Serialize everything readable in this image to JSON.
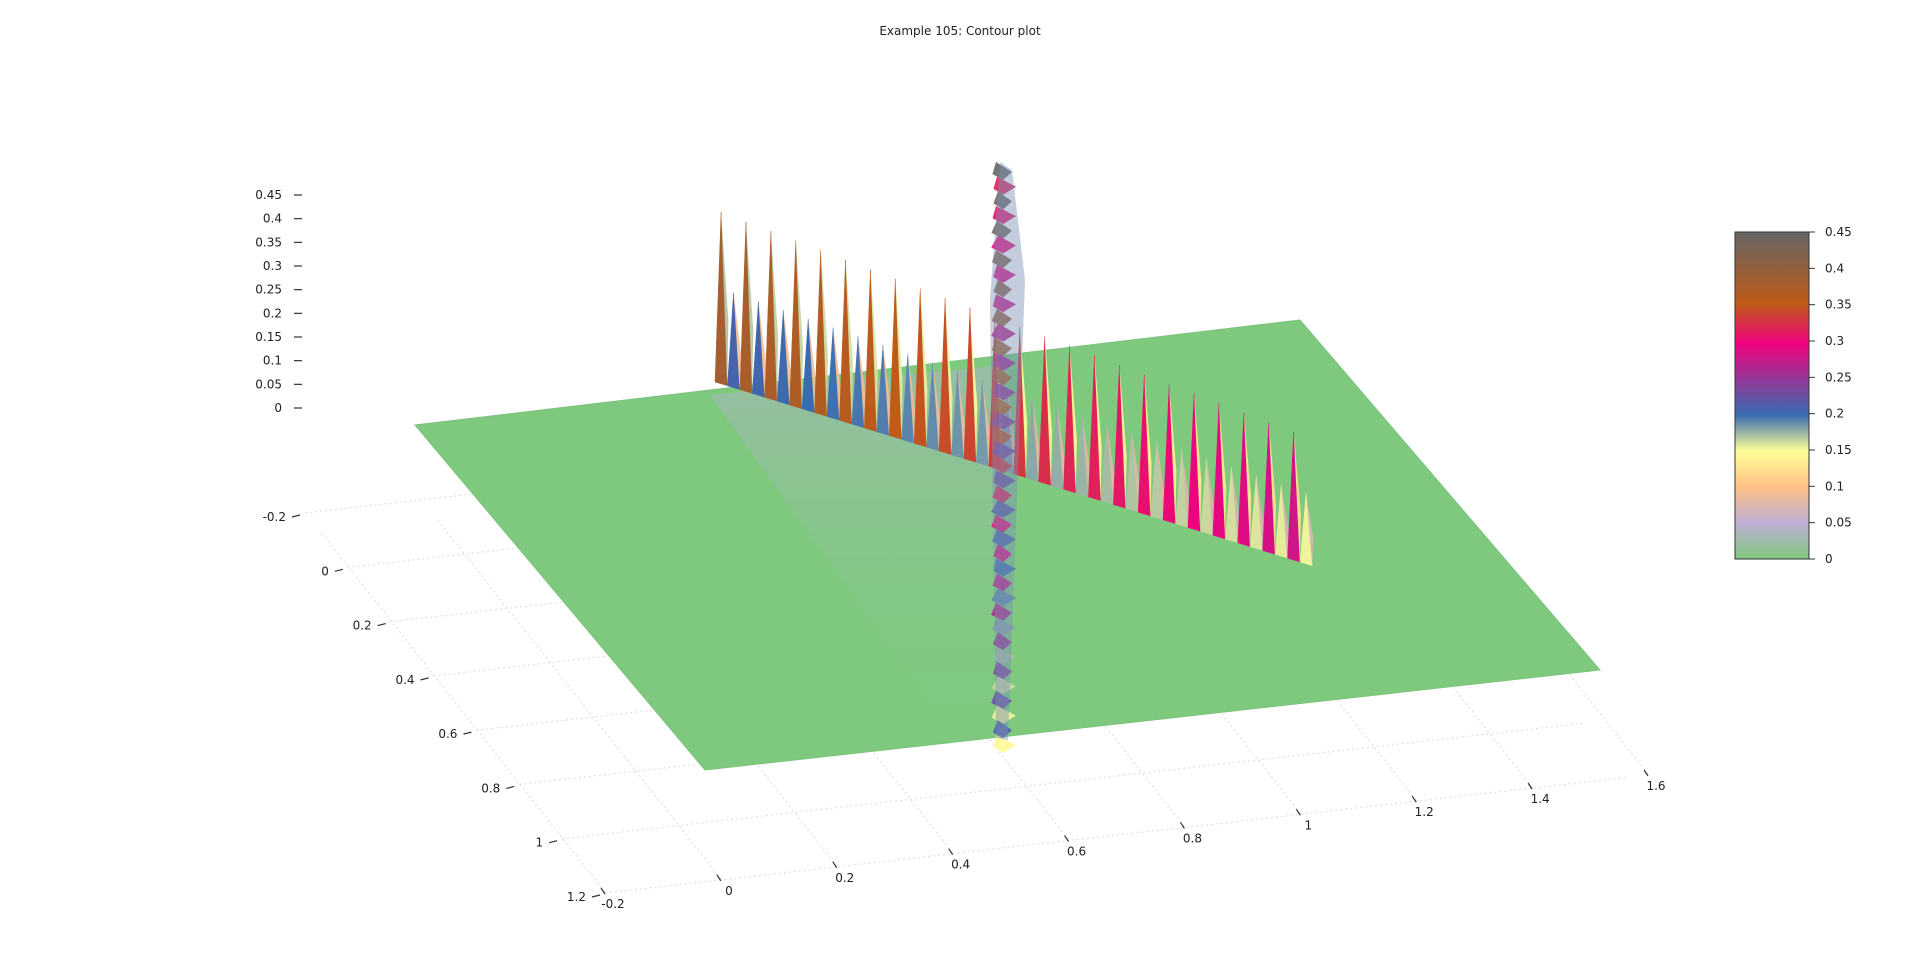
{
  "chart_data": {
    "type": "surface",
    "title": "Example 105: Contour plot",
    "x_ticks": [
      "-0.2",
      "0",
      "0.2",
      "0.4",
      "0.6",
      "0.8",
      "1",
      "1.2",
      "1.4",
      "1.6"
    ],
    "y_ticks": [
      "-0.2",
      "0",
      "0.2",
      "0.4",
      "0.6",
      "0.8",
      "1",
      "1.2"
    ],
    "z_ticks": [
      "0.45",
      "0.4",
      "0.35",
      "0.3",
      "0.25",
      "0.2",
      "0.15",
      "0.1",
      "0.05",
      "0"
    ],
    "colorbar_ticks": [
      "0.45",
      "0.4",
      "0.35",
      "0.3",
      "0.25",
      "0.2",
      "0.15",
      "0.1",
      "0.05",
      "0"
    ],
    "xlim": [
      -0.2,
      1.6
    ],
    "ylim": [
      -0.2,
      1.2
    ],
    "zlim": [
      0,
      0.45
    ],
    "colorscale": [
      {
        "value": 0.0,
        "color": "#7fc97f"
      },
      {
        "value": 0.05,
        "color": "#beaed4"
      },
      {
        "value": 0.1,
        "color": "#fdc086"
      },
      {
        "value": 0.15,
        "color": "#ffff99"
      },
      {
        "value": 0.2,
        "color": "#386cb0"
      },
      {
        "value": 0.3,
        "color": "#f0027f"
      },
      {
        "value": 0.35,
        "color": "#bf5b17"
      },
      {
        "value": 0.45,
        "color": "#666666"
      }
    ],
    "surface": {
      "base_value": 0,
      "ridges": [
        {
          "name": "",
          "direction": "along-x",
          "y": 0.48,
          "x_range": [
            0.0,
            1.05
          ],
          "z_start": 0.38,
          "z_end": 0.28
        },
        {
          "name": "",
          "direction": "along-y",
          "x": 0.5,
          "y_range": [
            -0.2,
            1.2
          ],
          "z_peak": 0.46
        }
      ]
    },
    "grid": true
  }
}
